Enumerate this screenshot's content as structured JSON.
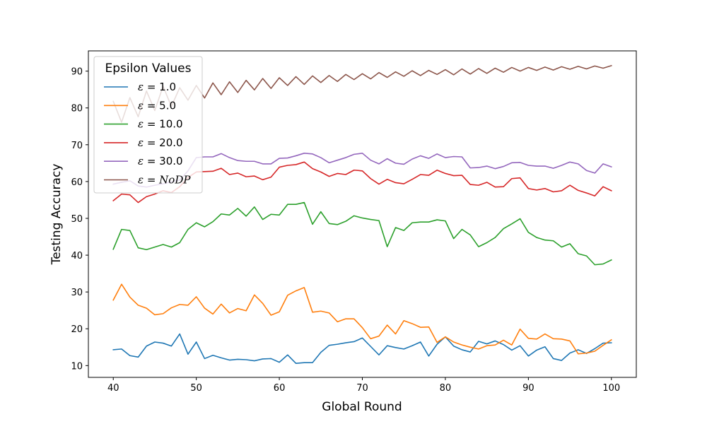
{
  "chart_data": {
    "type": "line",
    "title": "",
    "xlabel": "Global Round",
    "ylabel": "Testing Accuracy",
    "xlim": [
      37,
      103
    ],
    "ylim": [
      6.8,
      95.5
    ],
    "xticks": [
      40,
      50,
      60,
      70,
      80,
      90,
      100
    ],
    "yticks": [
      10,
      20,
      30,
      40,
      50,
      60,
      70,
      80,
      90
    ],
    "grid": false,
    "legend": {
      "title": "Epsilon Values",
      "position": "top-left",
      "entries": [
        "ε = 1.0",
        "ε = 5.0",
        "ε = 10.0",
        "ε = 20.0",
        "ε = 30.0",
        "ε = NoDP"
      ]
    },
    "x": [
      40,
      41,
      42,
      43,
      44,
      45,
      46,
      47,
      48,
      49,
      50,
      51,
      52,
      53,
      54,
      55,
      56,
      57,
      58,
      59,
      60,
      61,
      62,
      63,
      64,
      65,
      66,
      67,
      68,
      69,
      70,
      71,
      72,
      73,
      74,
      75,
      76,
      77,
      78,
      79,
      80,
      81,
      82,
      83,
      84,
      85,
      86,
      87,
      88,
      89,
      90,
      91,
      92,
      93,
      94,
      95,
      96,
      97,
      98,
      99,
      100
    ],
    "series": [
      {
        "name": "ε = 1.0",
        "color": "#1f77b4",
        "values": [
          14.3,
          14.5,
          12.7,
          12.3,
          15.3,
          16.4,
          16.1,
          15.3,
          18.6,
          13.1,
          16.4,
          11.9,
          12.8,
          12.1,
          11.5,
          11.7,
          11.6,
          11.3,
          11.8,
          11.9,
          10.9,
          12.9,
          10.6,
          10.8,
          10.8,
          13.6,
          15.5,
          15.8,
          16.2,
          16.5,
          17.5,
          15.2,
          12.9,
          15.4,
          14.9,
          14.5,
          15.4,
          16.4,
          12.6,
          15.8,
          17.8,
          15.3,
          14.3,
          13.7,
          16.6,
          15.9,
          16.7,
          15.7,
          14.2,
          15.4,
          12.6,
          14.2,
          15.1,
          11.9,
          11.4,
          13.4,
          14.3,
          13.3,
          14.6,
          16.1,
          16.2
        ]
      },
      {
        "name": "ε = 5.0",
        "color": "#ff7f0e",
        "values": [
          27.8,
          32.1,
          28.6,
          26.4,
          25.6,
          23.8,
          24.1,
          25.7,
          26.6,
          26.4,
          28.7,
          25.6,
          24.0,
          26.7,
          24.3,
          25.5,
          24.9,
          29.2,
          26.9,
          23.7,
          24.6,
          29.1,
          30.3,
          31.2,
          24.5,
          24.8,
          24.3,
          21.9,
          22.7,
          22.7,
          20.3,
          17.3,
          18.0,
          21.0,
          18.6,
          22.2,
          21.4,
          20.4,
          20.5,
          16.3,
          17.8,
          16.4,
          15.6,
          15.0,
          14.5,
          15.4,
          15.6,
          16.9,
          15.6,
          19.9,
          17.4,
          17.2,
          18.6,
          17.3,
          17.2,
          16.7,
          13.2,
          13.4,
          13.9,
          15.5,
          17.0
        ]
      },
      {
        "name": "ε = 10.0",
        "color": "#2ca02c",
        "values": [
          41.6,
          47.0,
          46.7,
          42.0,
          41.5,
          42.2,
          42.9,
          42.2,
          43.4,
          47.0,
          48.8,
          47.7,
          49.1,
          51.2,
          50.9,
          52.7,
          50.6,
          53.1,
          49.7,
          51.1,
          50.9,
          53.8,
          53.8,
          54.3,
          48.4,
          51.8,
          48.6,
          48.3,
          49.2,
          50.7,
          50.1,
          49.7,
          49.4,
          42.3,
          47.5,
          46.7,
          48.8,
          49.0,
          49.0,
          49.6,
          49.3,
          44.5,
          47.0,
          45.5,
          42.3,
          43.4,
          44.8,
          47.2,
          48.5,
          49.9,
          46.2,
          44.8,
          44.1,
          43.9,
          42.2,
          43.1,
          40.4,
          39.8,
          37.4,
          37.6,
          38.7
        ]
      },
      {
        "name": "ε = 20.0",
        "color": "#d62728",
        "values": [
          54.8,
          56.6,
          56.4,
          54.3,
          55.9,
          56.6,
          57.5,
          57.0,
          58.6,
          61.1,
          62.6,
          62.7,
          62.8,
          63.6,
          61.9,
          62.3,
          61.3,
          61.5,
          60.5,
          61.2,
          63.9,
          64.4,
          64.6,
          65.3,
          63.5,
          62.6,
          61.4,
          62.2,
          61.9,
          63.1,
          62.9,
          60.8,
          59.3,
          60.6,
          59.7,
          59.4,
          60.6,
          61.9,
          61.7,
          63.1,
          62.2,
          61.6,
          61.7,
          59.2,
          59.0,
          59.8,
          58.5,
          58.6,
          60.8,
          61.0,
          58.1,
          57.7,
          58.1,
          57.2,
          57.5,
          59.0,
          57.6,
          56.9,
          56.1,
          58.6,
          57.5
        ]
      },
      {
        "name": "ε = 30.0",
        "color": "#9467bd",
        "values": [
          59.3,
          59.8,
          60.2,
          58.8,
          58.5,
          59.0,
          59.4,
          59.9,
          60.4,
          62.9,
          66.5,
          66.7,
          66.7,
          67.6,
          66.5,
          65.7,
          65.5,
          65.5,
          64.8,
          64.8,
          66.3,
          66.4,
          67.0,
          67.7,
          67.5,
          66.5,
          65.1,
          65.8,
          66.5,
          67.4,
          67.7,
          65.8,
          64.8,
          66.2,
          65.0,
          64.7,
          66.1,
          67.0,
          66.3,
          67.5,
          66.5,
          66.8,
          66.7,
          63.7,
          63.8,
          64.2,
          63.5,
          64.1,
          65.1,
          65.2,
          64.4,
          64.2,
          64.2,
          63.6,
          64.4,
          65.3,
          64.8,
          63.0,
          62.3,
          64.8,
          64.0
        ]
      },
      {
        "name": "ε = NoDP",
        "color": "#8c564b",
        "values": [
          81.8,
          76.1,
          82.8,
          77.6,
          84.6,
          79.3,
          85.9,
          80.4,
          85.5,
          82.1,
          86.1,
          82.7,
          86.8,
          83.6,
          87.1,
          84.2,
          87.5,
          84.9,
          88.0,
          85.3,
          88.2,
          86.1,
          88.5,
          86.4,
          88.7,
          86.9,
          88.8,
          87.2,
          89.1,
          87.7,
          89.3,
          87.9,
          89.6,
          88.3,
          89.8,
          88.6,
          90.1,
          88.8,
          90.2,
          89.1,
          90.4,
          89.0,
          90.6,
          89.2,
          90.7,
          89.4,
          90.8,
          89.7,
          91.0,
          90.0,
          91.0,
          90.2,
          91.1,
          90.3,
          91.2,
          90.5,
          91.3,
          90.6,
          91.4,
          90.8,
          91.5
        ]
      }
    ]
  }
}
